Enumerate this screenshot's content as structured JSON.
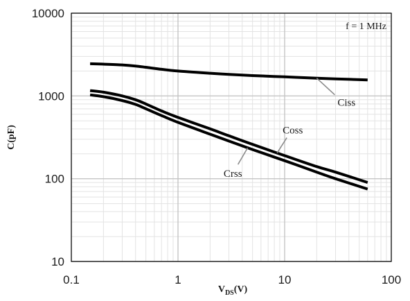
{
  "chart_data": {
    "type": "line",
    "title": "",
    "xlabel_main": "V",
    "xlabel_sub": "DS",
    "xlabel_unit": "(V)",
    "ylabel": "C(pF)",
    "x_scale": "log",
    "y_scale": "log",
    "xlim": [
      0.1,
      100
    ],
    "ylim": [
      10,
      10000
    ],
    "x_ticks": [
      0.1,
      1,
      10,
      100
    ],
    "x_tick_labels": [
      "0.1",
      "1",
      "10",
      "100"
    ],
    "y_ticks": [
      10,
      100,
      1000,
      10000
    ],
    "y_tick_labels": [
      "10",
      "100",
      "1000",
      "10000"
    ],
    "grid": true,
    "annotation": "f = 1 MHz",
    "line_color": "#000000",
    "series": [
      {
        "name": "Ciss",
        "x": [
          0.15,
          0.2,
          0.3,
          0.4,
          0.5,
          0.7,
          1,
          2,
          3,
          5,
          10,
          20,
          30,
          60
        ],
        "y": [
          2450,
          2420,
          2370,
          2300,
          2220,
          2100,
          2000,
          1880,
          1820,
          1760,
          1700,
          1640,
          1610,
          1560
        ]
      },
      {
        "name": "Coss",
        "x": [
          0.15,
          0.2,
          0.3,
          0.4,
          0.5,
          0.7,
          1,
          2,
          3,
          5,
          10,
          20,
          30,
          60
        ],
        "y": [
          1160,
          1110,
          1000,
          900,
          800,
          660,
          550,
          400,
          330,
          260,
          190,
          140,
          120,
          90
        ]
      },
      {
        "name": "Crss",
        "x": [
          0.15,
          0.2,
          0.3,
          0.4,
          0.5,
          0.7,
          1,
          2,
          3,
          5,
          10,
          20,
          30,
          60
        ],
        "y": [
          1030,
          980,
          880,
          790,
          700,
          580,
          480,
          345,
          285,
          225,
          165,
          120,
          100,
          75
        ]
      }
    ]
  }
}
